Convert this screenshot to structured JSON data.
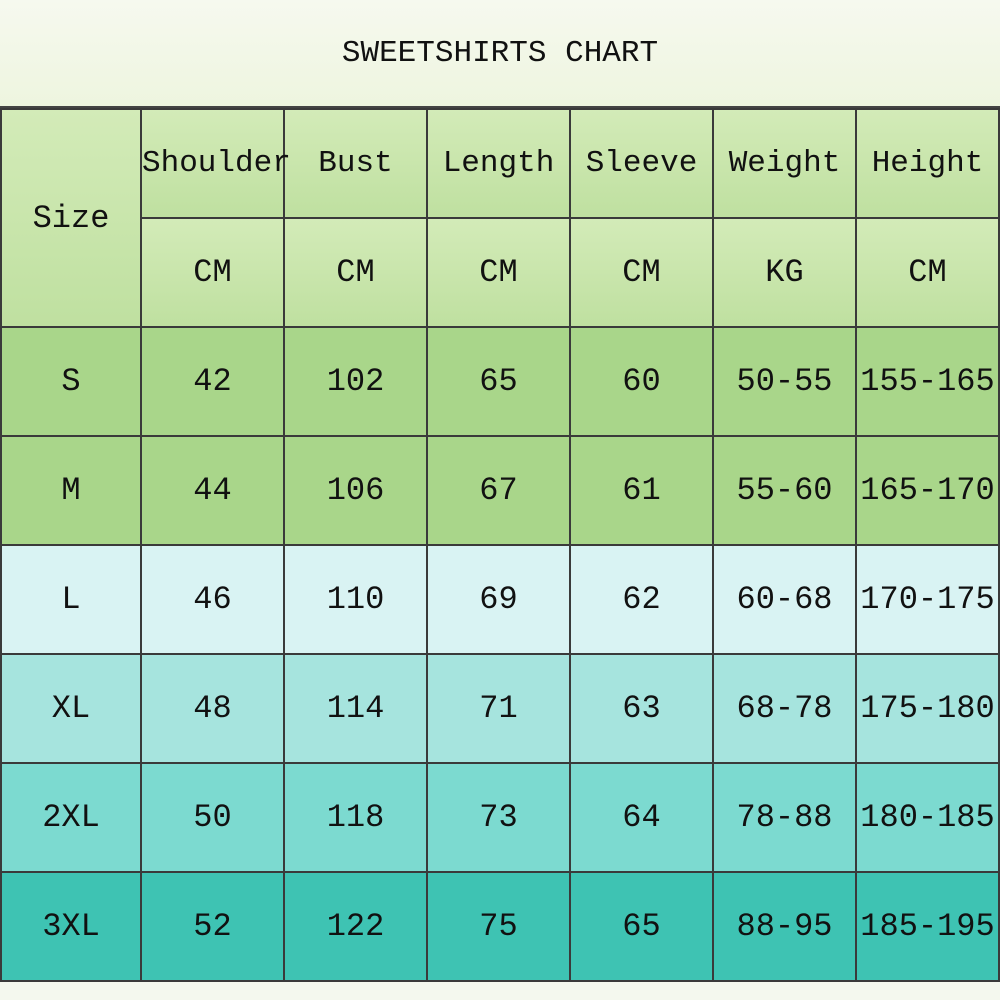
{
  "title": "SWEETSHIRTS CHART",
  "header": {
    "size_label": "Size",
    "columns": [
      {
        "name": "Shoulder",
        "unit": "CM"
      },
      {
        "name": "Bust",
        "unit": "CM"
      },
      {
        "name": "Length",
        "unit": "CM"
      },
      {
        "name": "Sleeve",
        "unit": "CM"
      },
      {
        "name": "Weight",
        "unit": "KG"
      },
      {
        "name": "Height",
        "unit": "CM"
      }
    ]
  },
  "rows": [
    {
      "size": "S",
      "values": [
        "42",
        "102",
        "65",
        "60",
        "50-55",
        "155-165"
      ]
    },
    {
      "size": "M",
      "values": [
        "44",
        "106",
        "67",
        "61",
        "55-60",
        "165-170"
      ]
    },
    {
      "size": "L",
      "values": [
        "46",
        "110",
        "69",
        "62",
        "60-68",
        "170-175"
      ]
    },
    {
      "size": "XL",
      "values": [
        "48",
        "114",
        "71",
        "63",
        "68-78",
        "175-180"
      ]
    },
    {
      "size": "2XL",
      "values": [
        "50",
        "118",
        "73",
        "64",
        "78-88",
        "180-185"
      ]
    },
    {
      "size": "3XL",
      "values": [
        "52",
        "122",
        "75",
        "65",
        "88-95",
        "185-195"
      ]
    }
  ],
  "colors": {
    "header": "#c8e6aa",
    "S": "#a9d68a",
    "M": "#a9d68a",
    "L": "#d9f3f3",
    "XL": "#a6e4de",
    "2XL": "#7cdad0",
    "3XL": "#3ec3b3"
  }
}
